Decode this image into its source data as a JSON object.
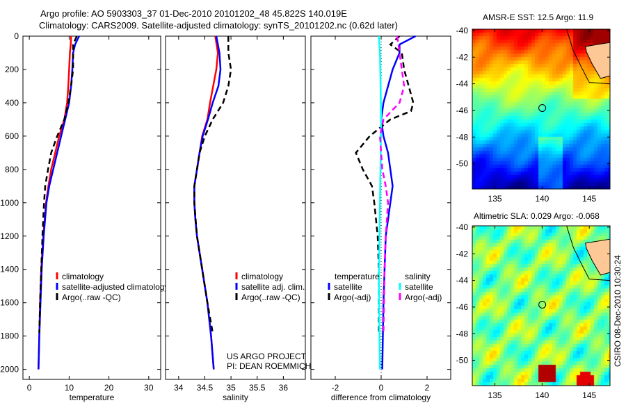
{
  "title_line1": "Argo profile: AO 5903303_37 01-Dec-2010 20101202_48 45.822S 140.019E",
  "title_line2": "Climatology: CARS2009. Satellite-adjusted climatology: synTS_20101202.nc (0.62d later)",
  "credit": "CSIRO 08-Dec-2010 10:30:24",
  "project_label": "US ARGO PROJECT",
  "pi_label": "PI: DEAN ROEMMICH",
  "colors": {
    "climatology": "#ff0000",
    "satellite": "#0000ff",
    "argo": "#000000",
    "sal_satellite": "#00ffff",
    "sal_argo": "#ff00ff"
  },
  "chart_data": [
    {
      "type": "line",
      "id": "temperature",
      "xlabel": "temperature",
      "ylabel": "",
      "xlim": [
        -1.6,
        33
      ],
      "ylim": [
        2060,
        0
      ],
      "xticks": [
        0,
        10,
        20,
        30
      ],
      "yticks": [
        0,
        200,
        400,
        600,
        800,
        1000,
        1200,
        1400,
        1600,
        1800,
        2000
      ],
      "legend": [
        "climatology",
        "satellite-adjusted climatology",
        "Argo(..raw -QC)"
      ],
      "series": [
        {
          "name": "climatology",
          "style": "solid",
          "color": "#ff0000",
          "depth": [
            0,
            50,
            100,
            200,
            300,
            400,
            500,
            600,
            700,
            800,
            900,
            1000,
            1200,
            1400,
            1600,
            1800,
            2000
          ],
          "values": [
            10.5,
            10.4,
            10.2,
            10,
            9.8,
            9.5,
            8.8,
            7.5,
            6.5,
            5.5,
            4.8,
            4.2,
            3.5,
            3.0,
            2.7,
            2.5,
            2.3
          ]
        },
        {
          "name": "satellite-adjusted climatology",
          "style": "solid",
          "color": "#0000ff",
          "depth": [
            0,
            50,
            100,
            200,
            300,
            400,
            500,
            600,
            700,
            800,
            900,
            1000,
            1200,
            1400,
            1600,
            1800,
            2000
          ],
          "values": [
            12.5,
            11.5,
            11,
            10.8,
            10.5,
            10,
            9,
            8,
            7,
            6,
            5,
            4.3,
            3.6,
            3.1,
            2.8,
            2.5,
            2.3
          ]
        },
        {
          "name": "Argo(..raw -QC)",
          "style": "dashed",
          "color": "#000000",
          "depth": [
            0,
            50,
            100,
            200,
            300,
            400,
            500,
            600,
            700,
            800,
            900,
            1000,
            1200,
            1400,
            1600,
            1780
          ],
          "values": [
            11.9,
            11,
            11,
            11,
            10.5,
            9.8,
            8.8,
            7,
            5.5,
            4.7,
            4,
            3.7,
            3.3,
            3.0,
            2.7,
            2.5
          ]
        }
      ]
    },
    {
      "type": "line",
      "id": "salinity",
      "xlabel": "salinity",
      "xlim": [
        33.75,
        36.42
      ],
      "ylim": [
        2060,
        0
      ],
      "xticks": [
        34,
        34.5,
        35,
        35.5,
        36
      ],
      "legend": [
        "climatology",
        "satellite adj. clim.",
        "Argo(..raw -QC)"
      ],
      "series": [
        {
          "name": "climatology",
          "style": "solid",
          "color": "#ff0000",
          "depth": [
            0,
            100,
            200,
            300,
            400,
            500,
            600,
            700,
            800,
            900,
            1000,
            1100,
            1200,
            1400,
            1600,
            1800,
            2000
          ],
          "values": [
            34.7,
            34.75,
            34.72,
            34.66,
            34.6,
            34.55,
            34.45,
            34.4,
            34.35,
            34.3,
            34.3,
            34.32,
            34.35,
            34.45,
            34.55,
            34.62,
            34.67
          ]
        },
        {
          "name": "satellite adj. clim.",
          "style": "solid",
          "color": "#0000ff",
          "depth": [
            0,
            100,
            200,
            300,
            400,
            500,
            600,
            700,
            800,
            900,
            1000,
            1100,
            1200,
            1400,
            1600,
            1800,
            2000
          ],
          "values": [
            34.72,
            34.78,
            34.8,
            34.76,
            34.65,
            34.56,
            34.46,
            34.4,
            34.35,
            34.3,
            34.3,
            34.32,
            34.35,
            34.45,
            34.55,
            34.62,
            34.67
          ]
        },
        {
          "name": "Argo(..raw -QC)",
          "style": "dashed",
          "color": "#000000",
          "depth": [
            0,
            100,
            200,
            300,
            400,
            500,
            600,
            700,
            800,
            900,
            1000,
            1200,
            1400,
            1600,
            1780
          ],
          "values": [
            34.95,
            34.95,
            35.0,
            34.95,
            34.85,
            34.65,
            34.5,
            34.4,
            34.35,
            34.3,
            34.3,
            34.35,
            34.45,
            34.55,
            34.65
          ]
        }
      ]
    },
    {
      "type": "line",
      "id": "difference",
      "xlabel": "difference from climatology",
      "xlim": [
        -3.06,
        3.03
      ],
      "ylim": [
        2060,
        0
      ],
      "xticks": [
        -2,
        0,
        2
      ],
      "legend_titles": [
        "temperature",
        "salinity"
      ],
      "legend": [
        "satellite",
        "Argo(-adj)",
        "satellite",
        "Argo(-adj)"
      ],
      "series": [
        {
          "name": "temperature satellite",
          "style": "solid",
          "color": "#0000ff",
          "depth": [
            0,
            50,
            100,
            200,
            300,
            400,
            500,
            600,
            700,
            800,
            900,
            1000,
            1200,
            1400,
            1600,
            2000
          ],
          "values": [
            1.5,
            0.8,
            0.8,
            0.5,
            0.3,
            0.1,
            0,
            0.1,
            0.3,
            0.4,
            0.5,
            0.4,
            0.2,
            0.15,
            0.1,
            0.05
          ]
        },
        {
          "name": "temperature Argo(-adj)",
          "style": "dashed",
          "color": "#000000",
          "depth": [
            0,
            50,
            100,
            200,
            300,
            400,
            450,
            500,
            600,
            700,
            800,
            900,
            1000,
            1200,
            1400,
            1780
          ],
          "values": [
            0.8,
            0.4,
            0.9,
            1.0,
            1.2,
            1.4,
            1.3,
            0.4,
            -0.5,
            -1.1,
            -0.8,
            -0.4,
            -0.3,
            -0.15,
            -0.1,
            -0.1
          ]
        },
        {
          "name": "salinity satellite",
          "style": "solid",
          "color": "#00ffff",
          "depth": [
            0,
            100,
            500,
            1000,
            1500,
            2000
          ],
          "values": [
            -0.1,
            -0.05,
            0,
            -0.05,
            -0.1,
            -0.05
          ]
        },
        {
          "name": "salinity Argo(-adj)",
          "style": "dashed",
          "color": "#ff00ff",
          "depth": [
            0,
            100,
            200,
            300,
            400,
            500,
            600,
            700,
            800,
            900,
            1000,
            1200,
            1400,
            1780
          ],
          "values": [
            0.7,
            0.8,
            0.9,
            1.0,
            0.8,
            0.1,
            -0.05,
            0,
            0.05,
            0.2,
            0.3,
            0.2,
            0.15,
            0.1
          ]
        }
      ]
    },
    {
      "type": "heatmap",
      "id": "sst_map",
      "title": "AMSR-E SST: 12.5 Argo: 11.9",
      "xlim": [
        132.6,
        147.2
      ],
      "ylim": [
        -51.9,
        -39.9
      ],
      "xticks": [
        135,
        140,
        145
      ],
      "yticks": [
        -40,
        -42,
        -44,
        -46,
        -48,
        -50
      ],
      "float_position": [
        140.019,
        -45.822
      ]
    },
    {
      "type": "heatmap",
      "id": "sla_map",
      "title": "Altimetric SLA: 0.029 Argo: -0.068",
      "xlim": [
        132.6,
        147.2
      ],
      "ylim": [
        -51.9,
        -39.9
      ],
      "xticks": [
        135,
        140,
        145
      ],
      "yticks": [
        -40,
        -42,
        -44,
        -46,
        -48,
        -50
      ],
      "float_position": [
        140.019,
        -45.822
      ]
    }
  ]
}
